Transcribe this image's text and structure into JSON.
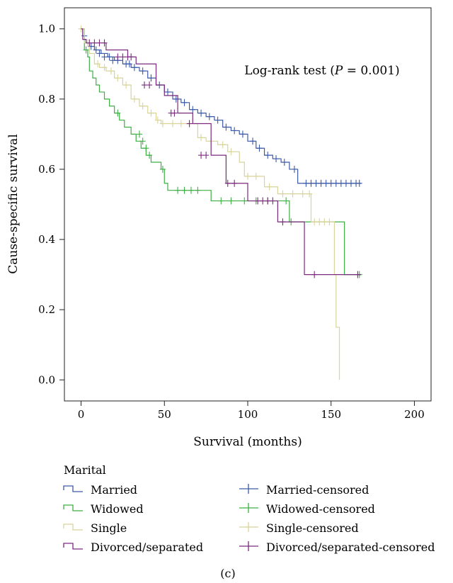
{
  "chart_data": {
    "type": "line",
    "subtype": "kaplan-meier",
    "xlabel": "Survival (months)",
    "ylabel": "Cause-specific survival",
    "xlim": [
      -10,
      210
    ],
    "ylim": [
      -0.06,
      1.06
    ],
    "xticks": [
      0,
      50,
      100,
      150,
      200
    ],
    "yticks": [
      0.0,
      0.2,
      0.4,
      0.6,
      0.8,
      1.0
    ],
    "yticklabels": [
      "0.0",
      "0.2",
      "0.4",
      "0.6",
      "0.8",
      "1.0"
    ],
    "grid": false,
    "annotation": {
      "prefix": "Log-rank test (",
      "p_symbol": "P",
      "suffix": " = 0.001)",
      "x": 98,
      "y": 0.88
    },
    "legend": {
      "title": "Marital",
      "placement": "bottom",
      "entries": [
        {
          "label": "Married",
          "kind": "line",
          "color": "#3c5aa8"
        },
        {
          "label": "Widowed",
          "kind": "line",
          "color": "#3cb043"
        },
        {
          "label": "Single",
          "kind": "line",
          "color": "#d8d49a"
        },
        {
          "label": "Divorced/separated",
          "kind": "line",
          "color": "#7b2a7e"
        },
        {
          "label": "Married-censored",
          "kind": "censor",
          "color": "#3c5aa8"
        },
        {
          "label": "Widowed-censored",
          "kind": "censor",
          "color": "#3cb043"
        },
        {
          "label": "Single-censored",
          "kind": "censor",
          "color": "#d8d49a"
        },
        {
          "label": "Divorced/separated-censored",
          "kind": "censor",
          "color": "#7b2a7e"
        }
      ]
    },
    "series": [
      {
        "name": "Married",
        "color": "#3c5aa8",
        "x": [
          0,
          1,
          2,
          3,
          5,
          8,
          12,
          16,
          20,
          25,
          30,
          35,
          40,
          45,
          50,
          55,
          60,
          65,
          70,
          75,
          80,
          85,
          90,
          95,
          100,
          105,
          110,
          115,
          120,
          125,
          130,
          168
        ],
        "y": [
          1.0,
          0.98,
          0.97,
          0.96,
          0.95,
          0.94,
          0.93,
          0.92,
          0.91,
          0.9,
          0.89,
          0.88,
          0.86,
          0.84,
          0.82,
          0.8,
          0.79,
          0.77,
          0.76,
          0.75,
          0.74,
          0.72,
          0.71,
          0.7,
          0.68,
          0.66,
          0.64,
          0.63,
          0.62,
          0.6,
          0.56,
          0.56
        ],
        "censored_x": [
          2,
          4,
          6,
          9,
          11,
          14,
          17,
          19,
          22,
          27,
          29,
          32,
          37,
          42,
          47,
          52,
          57,
          62,
          67,
          72,
          77,
          82,
          87,
          92,
          97,
          103,
          107,
          112,
          117,
          122,
          128,
          135,
          138,
          141,
          144,
          147,
          150,
          153,
          156,
          159,
          162,
          165,
          167
        ],
        "censored_y": [
          0.98,
          0.96,
          0.95,
          0.94,
          0.93,
          0.92,
          0.92,
          0.91,
          0.91,
          0.9,
          0.9,
          0.89,
          0.88,
          0.86,
          0.84,
          0.82,
          0.8,
          0.79,
          0.77,
          0.76,
          0.75,
          0.74,
          0.72,
          0.71,
          0.7,
          0.68,
          0.66,
          0.64,
          0.63,
          0.62,
          0.6,
          0.56,
          0.56,
          0.56,
          0.56,
          0.56,
          0.56,
          0.56,
          0.56,
          0.56,
          0.56,
          0.56,
          0.56
        ]
      },
      {
        "name": "Widowed",
        "color": "#3cb043",
        "x": [
          0,
          2,
          4,
          5,
          7,
          9,
          11,
          14,
          17,
          20,
          23,
          26,
          30,
          33,
          36,
          39,
          42,
          45,
          48,
          50,
          52,
          78,
          100,
          125,
          158,
          168
        ],
        "y": [
          1.0,
          0.94,
          0.92,
          0.88,
          0.86,
          0.84,
          0.82,
          0.8,
          0.78,
          0.76,
          0.74,
          0.72,
          0.7,
          0.68,
          0.66,
          0.64,
          0.62,
          0.62,
          0.6,
          0.56,
          0.54,
          0.51,
          0.51,
          0.45,
          0.3,
          0.3
        ],
        "censored_x": [
          3,
          22,
          35,
          37,
          39,
          41,
          49,
          58,
          62,
          66,
          70,
          84,
          90,
          98,
          105,
          112,
          123,
          126,
          167
        ],
        "censored_y": [
          0.94,
          0.76,
          0.7,
          0.68,
          0.66,
          0.64,
          0.6,
          0.54,
          0.54,
          0.54,
          0.54,
          0.51,
          0.51,
          0.51,
          0.51,
          0.51,
          0.51,
          0.45,
          0.3
        ]
      },
      {
        "name": "Single",
        "color": "#d8d49a",
        "x": [
          0,
          2,
          5,
          8,
          11,
          15,
          20,
          25,
          30,
          35,
          40,
          45,
          48,
          52,
          70,
          75,
          82,
          88,
          95,
          98,
          110,
          118,
          138,
          152,
          153,
          155
        ],
        "y": [
          1.0,
          0.96,
          0.93,
          0.9,
          0.89,
          0.88,
          0.86,
          0.84,
          0.8,
          0.78,
          0.76,
          0.74,
          0.73,
          0.73,
          0.69,
          0.68,
          0.67,
          0.65,
          0.62,
          0.58,
          0.55,
          0.53,
          0.45,
          0.3,
          0.15,
          0.0
        ],
        "censored_x": [
          0,
          4,
          10,
          14,
          18,
          22,
          27,
          32,
          37,
          42,
          46,
          49,
          55,
          60,
          65,
          72,
          78,
          85,
          90,
          100,
          105,
          113,
          121,
          127,
          133,
          137,
          140,
          143,
          146,
          149
        ],
        "censored_y": [
          1.0,
          0.96,
          0.9,
          0.89,
          0.88,
          0.86,
          0.84,
          0.8,
          0.78,
          0.76,
          0.74,
          0.73,
          0.73,
          0.73,
          0.73,
          0.69,
          0.68,
          0.67,
          0.65,
          0.58,
          0.58,
          0.55,
          0.53,
          0.53,
          0.53,
          0.53,
          0.45,
          0.45,
          0.45,
          0.45
        ]
      },
      {
        "name": "Divorced/separated",
        "color": "#7b2a7e",
        "x": [
          0,
          1,
          3,
          15,
          28,
          33,
          45,
          50,
          58,
          67,
          78,
          87,
          100,
          118,
          134,
          168
        ],
        "y": [
          1.0,
          0.97,
          0.96,
          0.94,
          0.92,
          0.9,
          0.84,
          0.81,
          0.76,
          0.73,
          0.64,
          0.56,
          0.51,
          0.45,
          0.3,
          0.3
        ],
        "censored_x": [
          5,
          8,
          11,
          14,
          22,
          25,
          28,
          30,
          38,
          41,
          54,
          56,
          65,
          72,
          75,
          88,
          92,
          106,
          109,
          112,
          115,
          121,
          140,
          166
        ],
        "censored_y": [
          0.96,
          0.96,
          0.96,
          0.96,
          0.92,
          0.92,
          0.92,
          0.92,
          0.84,
          0.84,
          0.76,
          0.76,
          0.73,
          0.64,
          0.64,
          0.56,
          0.56,
          0.51,
          0.51,
          0.51,
          0.51,
          0.45,
          0.3,
          0.3
        ]
      }
    ]
  },
  "caption": "(c)"
}
